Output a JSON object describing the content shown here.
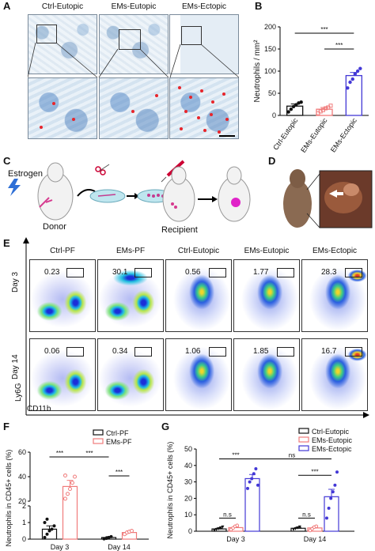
{
  "panels": {
    "A": "A",
    "B": "B",
    "C": "C",
    "D": "D",
    "E": "E",
    "F": "F",
    "G": "G"
  },
  "panelA": {
    "headers": [
      "Ctrl-Eutopic",
      "EMs-Eutopic",
      "EMs-Ectopic"
    ]
  },
  "panelC": {
    "estrogen": "Estrogen",
    "donor": "Donor",
    "recipient": "Recipient"
  },
  "panelE": {
    "columns": [
      "Ctrl-PF",
      "EMs-PF",
      "Ctrl-Eutopic",
      "EMs-Eutopic",
      "EMs-Ectopic"
    ],
    "rows": [
      "Day 3",
      "Day 14"
    ],
    "gates_day3": [
      "0.23",
      "30.1",
      "0.56",
      "1.77",
      "28.3"
    ],
    "gates_day14": [
      "0.06",
      "0.34",
      "1.06",
      "1.85",
      "16.7"
    ],
    "ylabel": "Ly6G",
    "xlabel": "CD11b"
  },
  "chart_data": [
    {
      "panel": "B",
      "type": "bar",
      "categories": [
        "Ctrl-Eutopic",
        "EMs-Eutopic",
        "EMs-Ectopic"
      ],
      "values": [
        21,
        14,
        90
      ],
      "errors": [
        5,
        4,
        7
      ],
      "points": [
        [
          8,
          14,
          20,
          24,
          28,
          30
        ],
        [
          5,
          9,
          12,
          16,
          18,
          22
        ],
        [
          62,
          75,
          82,
          94,
          100,
          106
        ]
      ],
      "colors": [
        "#111111",
        "#f07b7b",
        "#4338d6"
      ],
      "ylabel": "Neutrophils / mm²",
      "yticks": [
        "0",
        "50",
        "100",
        "150",
        "200"
      ],
      "ylim": [
        0,
        200
      ],
      "sig": [
        "***",
        "***"
      ]
    },
    {
      "panel": "F",
      "type": "bar",
      "groups": [
        "Day 3",
        "Day 14"
      ],
      "series": [
        {
          "name": "Ctrl-PF",
          "values": [
            0.6,
            0.1
          ],
          "errors": [
            0.2,
            0.05
          ],
          "color": "#111111"
        },
        {
          "name": "EMs-PF",
          "values": [
            32,
            0.4
          ],
          "errors": [
            5,
            0.1
          ],
          "color": "#f07b7b"
        }
      ],
      "points": {
        "Ctrl-PF": [
          [
            0.1,
            0.3,
            0.5,
            0.6,
            0.8,
            1.0,
            1.2
          ],
          [
            0.02,
            0.05,
            0.1,
            0.15
          ]
        ],
        "EMs-PF": [
          [
            22,
            26,
            30,
            35,
            40,
            41
          ],
          [
            0.3,
            0.4,
            0.45,
            0.5
          ]
        ]
      },
      "ylabel": "Neutrophils in CD45+ cells (%)",
      "yticks": [
        "0",
        "1",
        "2",
        "20",
        "40",
        "60"
      ],
      "sig": [
        "***",
        "***",
        "***"
      ]
    },
    {
      "panel": "G",
      "type": "bar",
      "groups": [
        "Day 3",
        "Day 14"
      ],
      "series": [
        {
          "name": "Ctrl-Eutopic",
          "values": [
            1.4,
            1.8
          ],
          "errors": [
            0.4,
            0.5
          ],
          "color": "#111111"
        },
        {
          "name": "EMs-Eutopic",
          "values": [
            2.2,
            2.0
          ],
          "errors": [
            0.6,
            0.5
          ],
          "color": "#f07b7b"
        },
        {
          "name": "EMs-Ectopic",
          "values": [
            32,
            21
          ],
          "errors": [
            2.5,
            4.5
          ],
          "color": "#4338d6"
        }
      ],
      "points": {
        "Ctrl-Eutopic": [
          [
            0.5,
            1.0,
            1.5,
            2.0,
            2.5
          ],
          [
            1.0,
            1.5,
            2.0,
            2.5
          ]
        ],
        "EMs-Eutopic": [
          [
            1.0,
            2.0,
            3.0,
            3.5
          ],
          [
            0.5,
            1.5,
            2.5,
            3.0
          ]
        ],
        "EMs-Ectopic": [
          [
            26,
            30,
            32,
            35,
            38,
            28
          ],
          [
            8,
            14,
            20,
            24,
            28,
            36
          ]
        ]
      },
      "ylabel": "Neutrophils in CD45+ cells (%)",
      "yticks": [
        "0",
        "10",
        "20",
        "30",
        "40",
        "50"
      ],
      "ylim": [
        0,
        50
      ],
      "sig": [
        "n.s",
        "***",
        "n.s",
        "***",
        "ns"
      ]
    }
  ]
}
